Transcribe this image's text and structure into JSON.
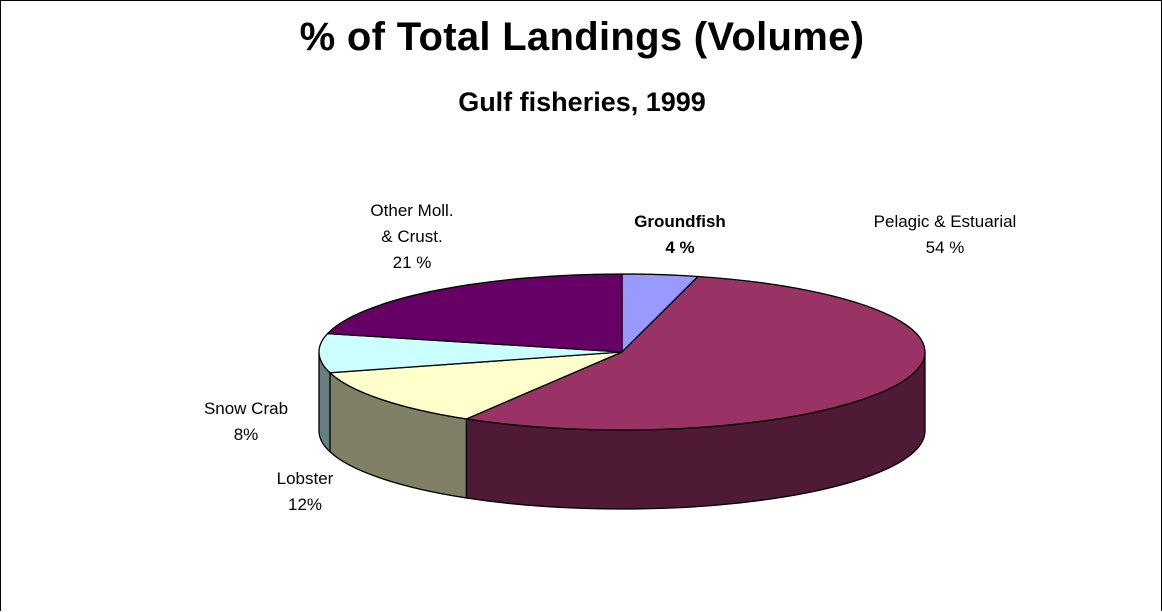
{
  "chart_data": {
    "type": "pie",
    "title": "% of Total Landings (Volume)",
    "subtitle": "Gulf fisheries, 1999",
    "slices": [
      {
        "name": "Groundfish",
        "value": 4,
        "label_name": "Groundfish",
        "label_value": "4 %",
        "color": "#9999ff",
        "side": "#5c5c99",
        "bold": true
      },
      {
        "name": "Pelagic & Estuarial",
        "value": 54,
        "label_name": "Pelagic & Estuarial",
        "label_value": "54 %",
        "color": "#993366",
        "side": "#4f1a35",
        "bold": false
      },
      {
        "name": "Lobster",
        "value": 12,
        "label_name": "Lobster",
        "label_value": "12%",
        "color": "#ffffcc",
        "side": "#808066",
        "bold": false
      },
      {
        "name": "Snow Crab",
        "value": 8,
        "label_name": "Snow Crab",
        "label_value": "8%",
        "color": "#ccffff",
        "side": "#668080",
        "bold": false
      },
      {
        "name": "Other Moll. & Crust.",
        "value": 21,
        "label_lines": [
          "Other Moll.",
          "& Crust.",
          "21 %"
        ],
        "color": "#660066",
        "side": "#330033",
        "bold": false
      }
    ]
  }
}
